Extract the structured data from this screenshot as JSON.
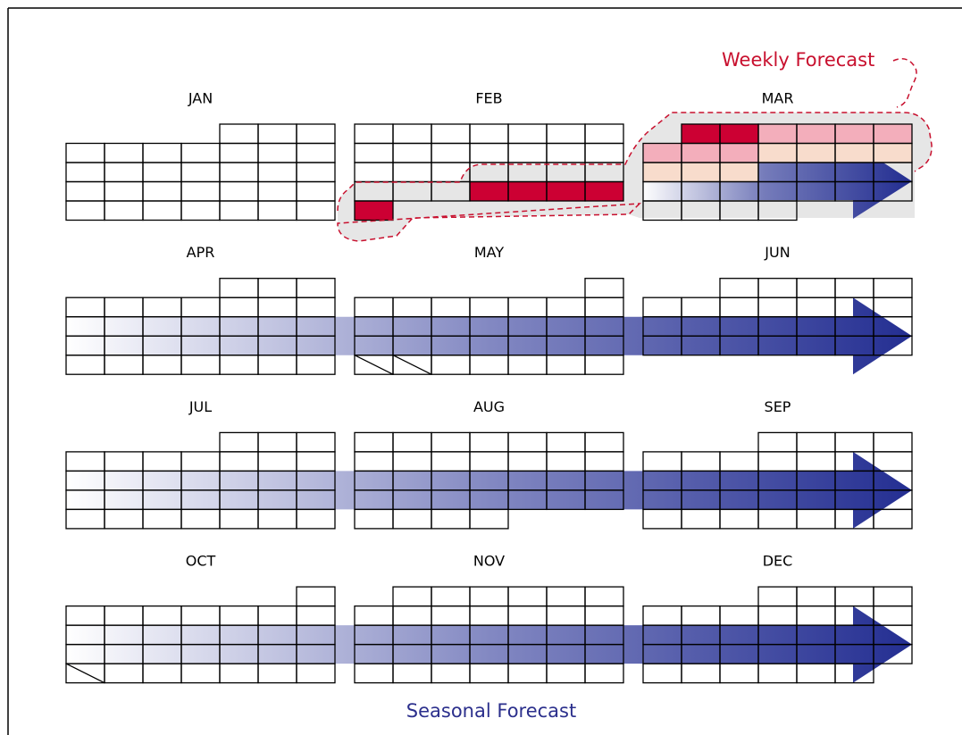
{
  "months": [
    "JAN",
    "FEB",
    "MAR",
    "APR",
    "MAY",
    "JUN",
    "JUL",
    "AUG",
    "SEP",
    "OCT",
    "NOV",
    "DEC"
  ],
  "annotations": {
    "weekly": "Weekly Forecast",
    "seasonal": "Seasonal Forecast"
  }
}
